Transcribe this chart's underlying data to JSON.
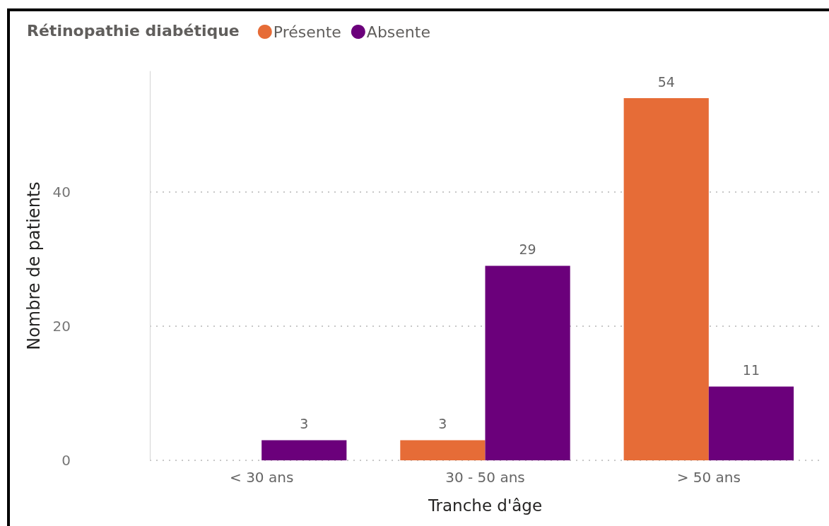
{
  "chart_data": {
    "type": "bar",
    "legend_title": "Rétinopathie diabétique",
    "xlabel": "Tranche d'âge",
    "ylabel": "Nombre de patients",
    "categories": [
      "< 30 ans",
      "30 - 50 ans",
      "> 50 ans"
    ],
    "series": [
      {
        "name": "Présente",
        "color": "#e66c37",
        "values": [
          null,
          3,
          54
        ]
      },
      {
        "name": "Absente",
        "color": "#6b007b",
        "values": [
          3,
          29,
          11
        ]
      }
    ],
    "ylim": [
      0,
      58
    ],
    "yticks": [
      0,
      20,
      40
    ],
    "grid": "y",
    "legend": "top left",
    "data_labels": true
  }
}
